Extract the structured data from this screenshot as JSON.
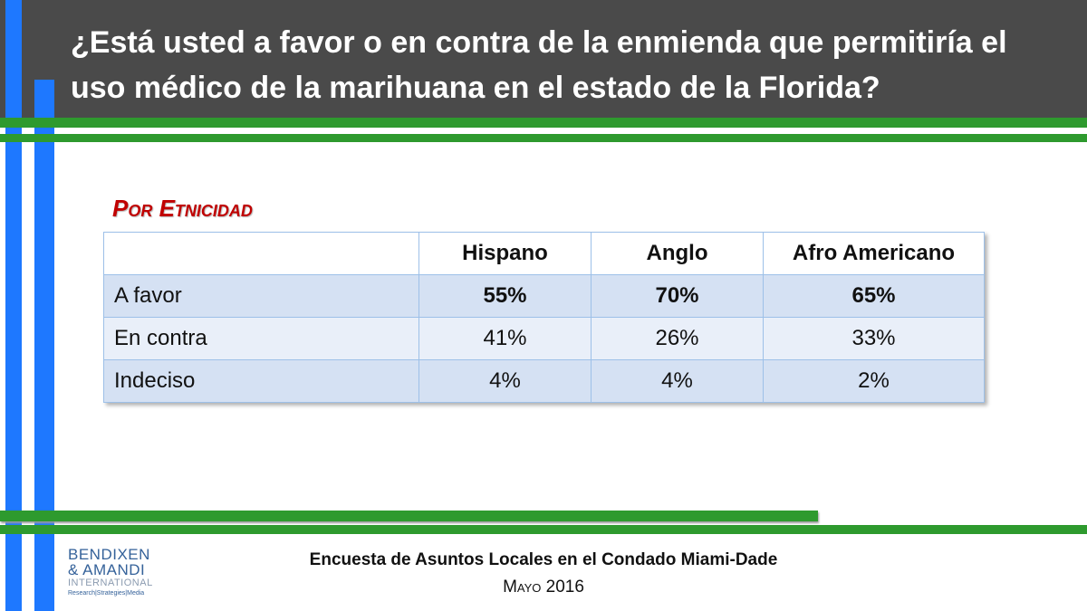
{
  "slide": {
    "title": "¿Está usted a favor o en contra de la enmienda que permitiría el uso médico de la marihuana en el estado de la Florida?",
    "section_heading": "Por Etnicidad"
  },
  "table": {
    "columns": [
      "",
      "Hispano",
      "Anglo",
      "Afro Americano"
    ],
    "rows": [
      {
        "label": "A favor",
        "values": [
          "55%",
          "70%",
          "65%"
        ]
      },
      {
        "label": "En contra",
        "values": [
          "41%",
          "26%",
          "33%"
        ]
      },
      {
        "label": "Indeciso",
        "values": [
          "4%",
          "4%",
          "2%"
        ]
      }
    ]
  },
  "footer": {
    "survey_title": "Encuesta de Asuntos Locales en el Condado Miami-Dade",
    "date": "Mayo 2016"
  },
  "logo": {
    "line1": "BENDIXEN",
    "line2": "& AMANDI",
    "line3": "INTERNATIONAL",
    "tagline": "Research|Strategies|Media"
  },
  "colors": {
    "header_bg": "#4a4a4a",
    "accent_blue": "#1e78ff",
    "accent_green": "#2e9a2e",
    "section_red": "#c00000",
    "row_shaded": "#d5e1f3",
    "row_light": "#e9eff9"
  }
}
